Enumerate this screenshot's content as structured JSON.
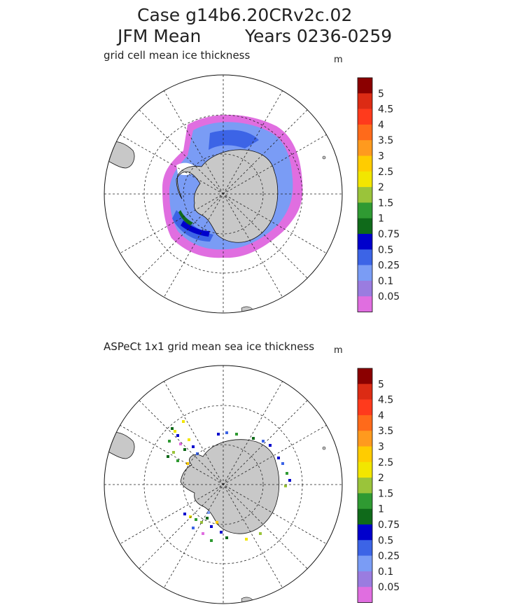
{
  "title_line1": "Case g14b6.20CRv2c.02",
  "title_line2_season": "JFM Mean",
  "title_line2_years": "Years 0236-0259",
  "panels": [
    {
      "subtitle": "grid cell mean ice thickness",
      "unit": "m",
      "colorbar_labels": [
        "5",
        "4.5",
        "4",
        "3.5",
        "3",
        "2.5",
        "2",
        "1.5",
        "1",
        "0.75",
        "0.5",
        "0.25",
        "0.1",
        "0.05"
      ]
    },
    {
      "subtitle": "ASPeCt 1x1 grid mean sea ice thickness",
      "unit": "m",
      "colorbar_labels": [
        "5",
        "4.5",
        "4",
        "3.5",
        "3",
        "2.5",
        "2",
        "1.5",
        "1",
        "0.75",
        "0.5",
        "0.25",
        "0.1",
        "0.05"
      ]
    }
  ],
  "colorbar_colors": [
    "#8b0000",
    "#dc2b14",
    "#ff3a1c",
    "#ff6a1a",
    "#ff9a1e",
    "#ffcc00",
    "#f2e600",
    "#9ac43a",
    "#2f9a32",
    "#0f6a1a",
    "#0000cc",
    "#3c64e6",
    "#7a9cf5",
    "#9a7ce0",
    "#e06ee0"
  ],
  "colors": {
    "land": "#c8c8c8",
    "graticule": "#222222",
    "border": "#111111"
  }
}
